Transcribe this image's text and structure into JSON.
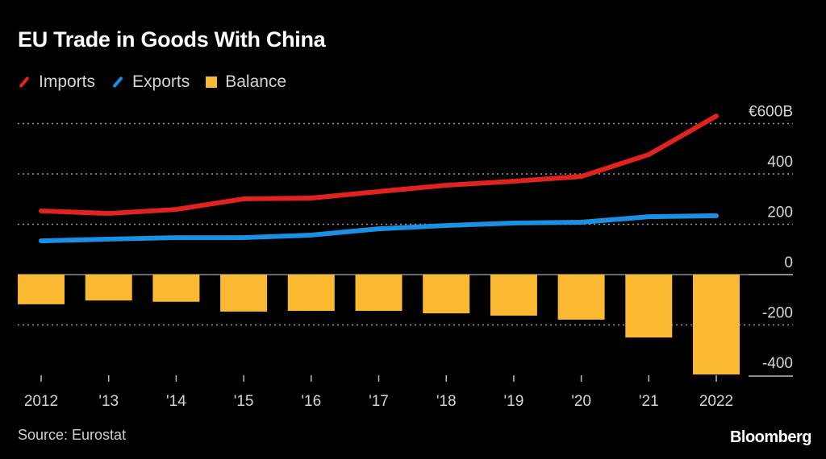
{
  "header": {
    "title": "EU Trade in Goods With China"
  },
  "legend": [
    {
      "label": "Imports",
      "color": "#e0231e",
      "kind": "line"
    },
    {
      "label": "Exports",
      "color": "#1a8fe3",
      "kind": "line"
    },
    {
      "label": "Balance",
      "color": "#fbb931",
      "kind": "box"
    }
  ],
  "footer": {
    "source": "Source: Eurostat",
    "brand": "Bloomberg"
  },
  "chart_data": {
    "type": "bar+line",
    "title": "EU Trade in Goods With China",
    "xlabel": "",
    "ylabel": "",
    "categories": [
      "2012",
      "'13",
      "'14",
      "'15",
      "'16",
      "'17",
      "'18",
      "'19",
      "'20",
      "'21",
      "2022"
    ],
    "series": [
      {
        "name": "Imports",
        "type": "line",
        "color": "#e0231e",
        "values": [
          253,
          243,
          259,
          301,
          304,
          330,
          355,
          371,
          390,
          477,
          630
        ]
      },
      {
        "name": "Exports",
        "type": "line",
        "color": "#1a8fe3",
        "values": [
          134,
          141,
          147,
          147,
          157,
          182,
          195,
          205,
          208,
          230,
          234
        ]
      },
      {
        "name": "Balance",
        "type": "bar",
        "color": "#fbb931",
        "values": [
          -118,
          -103,
          -108,
          -147,
          -144,
          -144,
          -154,
          -163,
          -179,
          -250,
          -397
        ]
      }
    ],
    "y_ticks": [
      {
        "value": 600,
        "label": "€600B"
      },
      {
        "value": 400,
        "label": "400"
      },
      {
        "value": 200,
        "label": "200"
      },
      {
        "value": 0,
        "label": "0"
      },
      {
        "value": -200,
        "label": "-200"
      },
      {
        "value": -400,
        "label": "-400"
      }
    ],
    "ylim": [
      -400,
      600
    ],
    "grid": true,
    "legend_position": "top-left",
    "y_axis_side": "right"
  }
}
